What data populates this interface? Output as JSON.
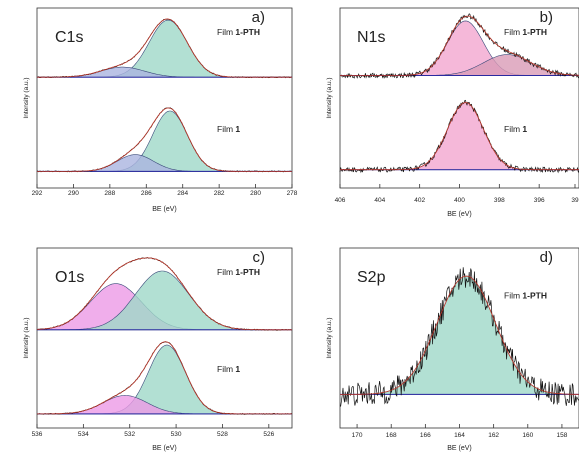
{
  "figure": {
    "ylabel": "Intensity (a.u.)",
    "xlabel": "BE (eV)"
  },
  "chart_data": [
    {
      "type": "line",
      "title": "C1s",
      "panel_label": "a)",
      "xlabel": "BE (eV)",
      "ylabel": "Intensity (a.u.)",
      "xlim": [
        292,
        278
      ],
      "x_ticks": [
        "292",
        "290",
        "288",
        "286",
        "284",
        "282",
        "280",
        "278"
      ],
      "traces": [
        {
          "label_prefix": "Film ",
          "label_bold": "1-PTH",
          "baseline": 0.2,
          "peaks": [
            {
              "center": 284.8,
              "height": 0.68,
              "sigma": 1.05,
              "color": "#9fd8c8"
            },
            {
              "center": 287.3,
              "height": 0.12,
              "sigma": 1.2,
              "color": "#aab4e0"
            }
          ]
        },
        {
          "label_prefix": "Film ",
          "label_bold": "1",
          "baseline": 0.15,
          "peaks": [
            {
              "center": 284.7,
              "height": 0.72,
              "sigma": 0.95,
              "color": "#9fd8c8"
            },
            {
              "center": 286.6,
              "height": 0.2,
              "sigma": 1.0,
              "color": "#aab4e0"
            }
          ]
        }
      ]
    },
    {
      "type": "line",
      "title": "N1s",
      "panel_label": "b)",
      "xlabel": "BE (eV)",
      "ylabel": "Intensity (a.u.)",
      "xlim": [
        406,
        394
      ],
      "x_ticks": [
        "406",
        "404",
        "402",
        "400",
        "398",
        "396",
        "39"
      ],
      "traces": [
        {
          "label_prefix": "Film ",
          "label_bold": "1-PTH",
          "baseline": 0.22,
          "peaks": [
            {
              "center": 399.7,
              "height": 0.65,
              "sigma": 0.9,
              "color": "#f2a6cf"
            },
            {
              "center": 397.6,
              "height": 0.25,
              "sigma": 1.2,
              "color": "#d99bb6"
            }
          ]
        },
        {
          "label_prefix": "Film ",
          "label_bold": "1",
          "baseline": 0.17,
          "peaks": [
            {
              "center": 399.7,
              "height": 0.8,
              "sigma": 0.9,
              "color": "#f2a6cf"
            }
          ]
        }
      ]
    },
    {
      "type": "line",
      "title": "O1s",
      "panel_label": "c)",
      "xlabel": "BE (eV)",
      "ylabel": "Intensity (a.u.)",
      "xlim": [
        536,
        525
      ],
      "x_ticks": [
        "536",
        "534",
        "532",
        "530",
        "528",
        "526"
      ],
      "traces": [
        {
          "label_prefix": "Film ",
          "label_bold": "1-PTH",
          "baseline": 0.05,
          "peaks": [
            {
              "center": 532.6,
              "height": 0.55,
              "sigma": 1.1,
              "color": "#ec9ae6"
            },
            {
              "center": 530.6,
              "height": 0.7,
              "sigma": 1.15,
              "color": "#9fd8c8"
            }
          ]
        },
        {
          "label_prefix": "Film ",
          "label_bold": "1",
          "baseline": 0.12,
          "peaks": [
            {
              "center": 530.4,
              "height": 0.82,
              "sigma": 0.8,
              "color": "#9fd8c8"
            },
            {
              "center": 532.2,
              "height": 0.22,
              "sigma": 0.95,
              "color": "#ec9ae6"
            }
          ]
        }
      ]
    },
    {
      "type": "line",
      "title": "S2p",
      "panel_label": "d)",
      "xlabel": "BE (eV)",
      "ylabel": "Intensity (a.u.)",
      "xlim": [
        171,
        157
      ],
      "x_ticks": [
        "170",
        "168",
        "166",
        "164",
        "162",
        "160",
        "158"
      ],
      "traces": [
        {
          "label_prefix": "Film ",
          "label_bold": "1-PTH",
          "baseline": 0.17,
          "peaks": [
            {
              "center": 163.6,
              "height": 0.68,
              "sigma": 1.7,
              "color": "#9fd8c8"
            }
          ]
        }
      ]
    }
  ]
}
